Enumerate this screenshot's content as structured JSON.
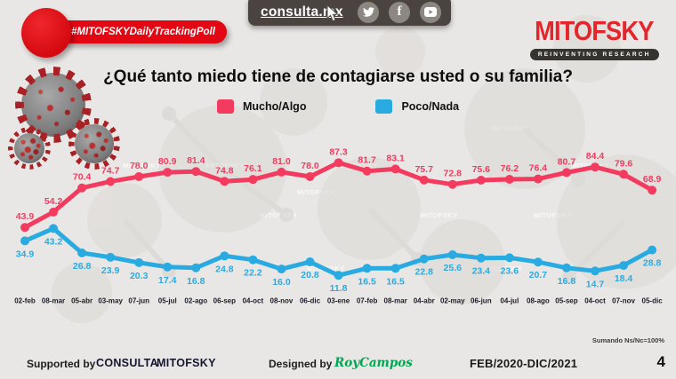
{
  "colors": {
    "background": "#e9e7e5",
    "badge_red": "#e30613",
    "logo_red": "#e4262c",
    "topbar_bg": "#4a4340",
    "line_red": "#f23b5f",
    "line_blue": "#29abe2",
    "designer_green": "#00a651"
  },
  "header": {
    "badge_label": "#MITOFSKYDailyTrackingPoll",
    "site_label": "consulta.mx",
    "logo_text": "MITOFSKY",
    "logo_tagline": "REINVENTING RESEARCH"
  },
  "chart_data": {
    "type": "line",
    "title": "¿Qué tanto miedo tiene de contagiarse usted o su familia?",
    "categories": [
      "02-feb",
      "08-mar",
      "05-abr",
      "03-may",
      "07-jun",
      "05-jul",
      "02-ago",
      "06-sep",
      "04-oct",
      "08-nov",
      "06-dic",
      "03-ene",
      "07-feb",
      "08-mar",
      "04-abr",
      "02-may",
      "06-jun",
      "04-jul",
      "08-ago",
      "05-sep",
      "04-oct",
      "07-nov",
      "05-dic"
    ],
    "series": [
      {
        "name": "Mucho/Algo",
        "color": "#f23b5f",
        "values": [
          43.9,
          54.2,
          70.4,
          74.7,
          78.0,
          80.9,
          81.4,
          74.8,
          76.1,
          81.0,
          78.0,
          87.3,
          81.7,
          83.1,
          75.7,
          72.8,
          75.6,
          76.2,
          76.4,
          80.7,
          84.4,
          79.6,
          68.9
        ]
      },
      {
        "name": "Poco/Nada",
        "color": "#29abe2",
        "values": [
          34.9,
          43.2,
          26.8,
          23.9,
          20.3,
          17.4,
          16.8,
          24.8,
          22.2,
          16.0,
          20.8,
          11.8,
          16.5,
          16.5,
          22.8,
          25.6,
          23.4,
          23.6,
          20.7,
          16.8,
          14.7,
          18.4,
          28.8
        ]
      }
    ],
    "ylim": [
      0,
      100
    ],
    "grid": false,
    "legend_position": "top-center",
    "value_decimals": 1,
    "note": "Sumando Ns/Nc=100%"
  },
  "watermark": "MITOFSKY",
  "footer": {
    "supported_by": "Supported by",
    "org1": "CONSULTA",
    "org2": "MITOFSKY",
    "designed_by": "Designed by",
    "designer": "RoyCampos",
    "period": "FEB/2020-DIC/2021",
    "page": "4"
  }
}
